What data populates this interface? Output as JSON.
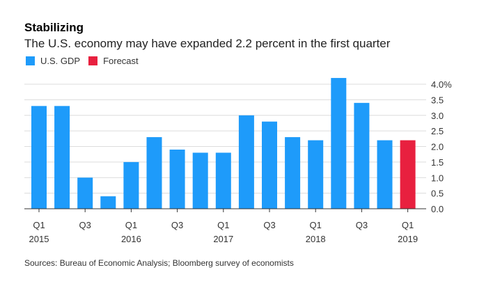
{
  "title": "Stabilizing",
  "subtitle": "The U.S. economy may have expanded 2.2 percent in the first quarter",
  "legend": [
    {
      "label": "U.S. GDP",
      "color": "#1e9bfa"
    },
    {
      "label": "Forecast",
      "color": "#e8203f"
    }
  ],
  "source": "Sources: Bureau of Economic Analysis; Bloomberg survey of economists",
  "chart_data": {
    "type": "bar",
    "title": "Stabilizing",
    "subtitle": "The U.S. economy may have expanded 2.2 percent in the first quarter",
    "xlabel": "",
    "ylabel": "",
    "ylim": [
      0,
      4.0
    ],
    "grid": true,
    "y_axis_side": "right",
    "yticks": [
      0.0,
      0.5,
      1.0,
      1.5,
      2.0,
      2.5,
      3.0,
      3.5,
      4.0
    ],
    "ytick_labels": [
      "0.0",
      "0.5",
      "1.0",
      "1.5",
      "2.0",
      "2.5",
      "3.0",
      "3.5",
      "4.0%"
    ],
    "categories": [
      "2015 Q1",
      "2015 Q2",
      "2015 Q3",
      "2015 Q4",
      "2016 Q1",
      "2016 Q2",
      "2016 Q3",
      "2016 Q4",
      "2017 Q1",
      "2017 Q2",
      "2017 Q3",
      "2017 Q4",
      "2018 Q1",
      "2018 Q2",
      "2018 Q3",
      "2018 Q4",
      "2019 Q1"
    ],
    "xtick_labels": [
      {
        "index": 0,
        "quarter": "Q1",
        "year": "2015"
      },
      {
        "index": 2,
        "quarter": "Q3",
        "year": ""
      },
      {
        "index": 4,
        "quarter": "Q1",
        "year": "2016"
      },
      {
        "index": 6,
        "quarter": "Q3",
        "year": ""
      },
      {
        "index": 8,
        "quarter": "Q1",
        "year": "2017"
      },
      {
        "index": 10,
        "quarter": "Q3",
        "year": ""
      },
      {
        "index": 12,
        "quarter": "Q1",
        "year": "2018"
      },
      {
        "index": 14,
        "quarter": "Q3",
        "year": ""
      },
      {
        "index": 16,
        "quarter": "Q1",
        "year": "2019"
      }
    ],
    "series": [
      {
        "name": "U.S. GDP",
        "color": "#1e9bfa",
        "values": [
          3.3,
          3.3,
          1.0,
          0.4,
          1.5,
          2.3,
          1.9,
          1.8,
          1.8,
          3.0,
          2.8,
          2.3,
          2.2,
          4.2,
          3.4,
          2.2,
          null
        ]
      },
      {
        "name": "Forecast",
        "color": "#e8203f",
        "values": [
          null,
          null,
          null,
          null,
          null,
          null,
          null,
          null,
          null,
          null,
          null,
          null,
          null,
          null,
          null,
          null,
          2.2
        ]
      }
    ],
    "legend_position": "top-left"
  }
}
